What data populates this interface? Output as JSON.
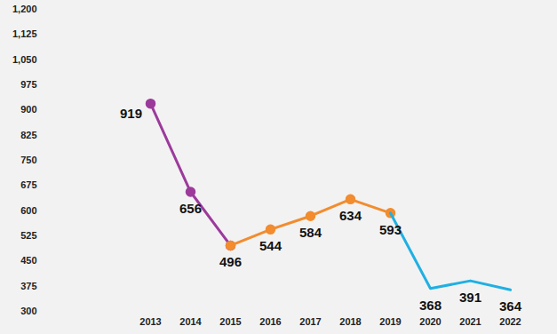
{
  "chart_data": {
    "type": "line",
    "categories": [
      "2013",
      "2014",
      "2015",
      "2016",
      "2017",
      "2018",
      "2019",
      "2020",
      "2021",
      "2022"
    ],
    "series": [
      {
        "color": "#9c3a9c",
        "marker": "circle",
        "values": [
          919,
          656,
          496,
          null,
          null,
          null,
          null,
          null,
          null,
          null
        ]
      },
      {
        "color": "#f28c2e",
        "marker": "circle",
        "values": [
          null,
          null,
          496,
          544,
          584,
          634,
          593,
          null,
          null,
          null
        ]
      },
      {
        "color": "#1fb0e3",
        "marker": "none",
        "values": [
          null,
          null,
          null,
          null,
          null,
          null,
          593,
          368,
          391,
          364
        ]
      }
    ],
    "ylim": [
      300,
      1200
    ],
    "yticks": [
      300,
      375,
      450,
      525,
      600,
      675,
      750,
      825,
      900,
      975,
      1050,
      1125,
      1200
    ],
    "data_labels": true,
    "grid": false
  }
}
